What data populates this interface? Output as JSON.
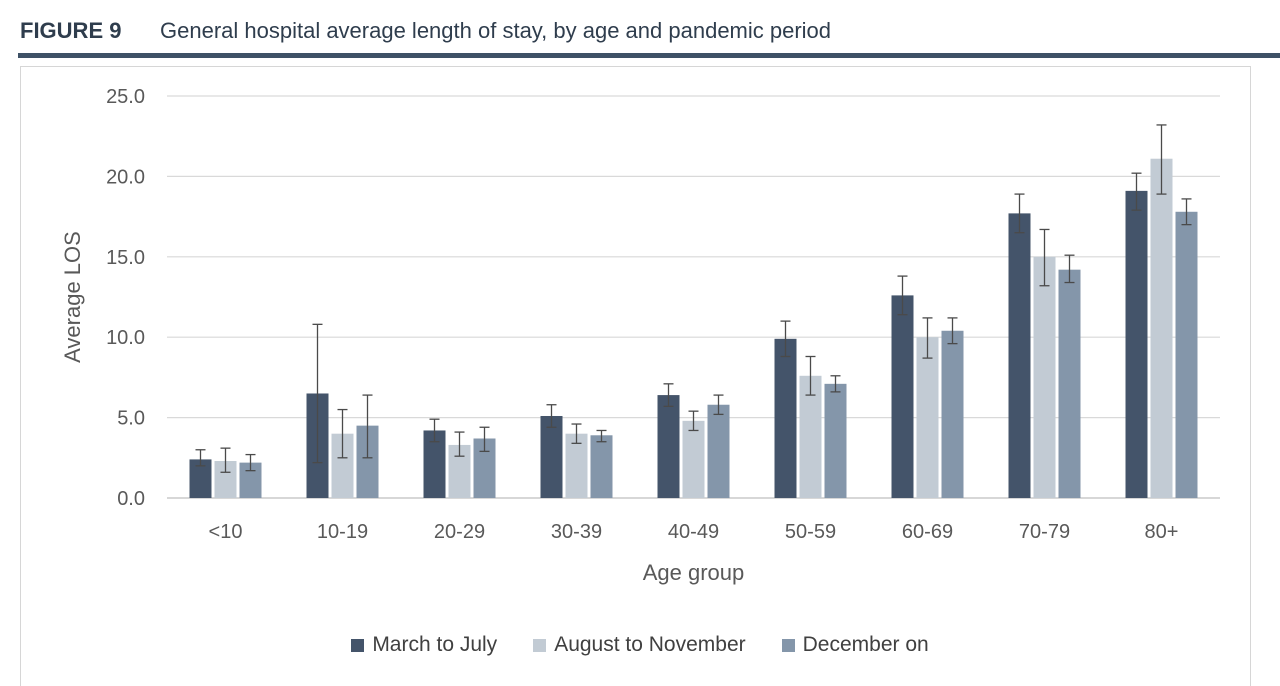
{
  "figure": {
    "label": "FIGURE 9",
    "title": "General hospital average length of stay, by age and pandemic period"
  },
  "chart_data": {
    "type": "bar",
    "title": "General hospital average length of stay, by age and pandemic period",
    "xlabel": "Age group",
    "ylabel": "Average LOS",
    "ylim": [
      0,
      25
    ],
    "yticks": [
      "0.0",
      "5.0",
      "10.0",
      "15.0",
      "20.0",
      "25.0"
    ],
    "ytick_values": [
      0,
      5,
      10,
      15,
      20,
      25
    ],
    "grid": true,
    "legend_position": "bottom",
    "categories": [
      "<10",
      "10-19",
      "20-29",
      "30-39",
      "40-49",
      "50-59",
      "60-69",
      "70-79",
      "80+"
    ],
    "series": [
      {
        "name": "March to July",
        "color": "#44546a",
        "values": [
          2.4,
          6.5,
          4.2,
          5.1,
          6.4,
          9.9,
          12.6,
          17.7,
          19.1
        ],
        "err_low": [
          2.0,
          2.2,
          3.5,
          4.4,
          5.7,
          8.8,
          11.4,
          16.5,
          17.9
        ],
        "err_high": [
          3.0,
          10.8,
          4.9,
          5.8,
          7.1,
          11.0,
          13.8,
          18.9,
          20.2
        ]
      },
      {
        "name": "August to November",
        "color": "#c2cbd4",
        "values": [
          2.3,
          4.0,
          3.3,
          4.0,
          4.8,
          7.6,
          10.0,
          15.0,
          21.1
        ],
        "err_low": [
          1.6,
          2.5,
          2.6,
          3.4,
          4.2,
          6.4,
          8.7,
          13.2,
          18.9
        ],
        "err_high": [
          3.1,
          5.5,
          4.1,
          4.6,
          5.4,
          8.8,
          11.2,
          16.7,
          23.2
        ]
      },
      {
        "name": "December on",
        "color": "#8496aa",
        "values": [
          2.2,
          4.5,
          3.7,
          3.9,
          5.8,
          7.1,
          10.4,
          14.2,
          17.8
        ],
        "err_low": [
          1.7,
          2.5,
          2.9,
          3.5,
          5.2,
          6.6,
          9.6,
          13.4,
          17.0
        ],
        "err_high": [
          2.7,
          6.4,
          4.4,
          4.2,
          6.4,
          7.6,
          11.2,
          15.1,
          18.6
        ]
      }
    ]
  }
}
